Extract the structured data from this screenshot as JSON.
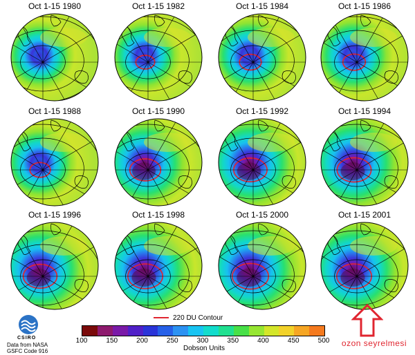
{
  "panels": [
    {
      "title": "Oct 1-15 1980",
      "hole": 0.42,
      "contour": 0.0
    },
    {
      "title": "Oct 1-15 1982",
      "hole": 0.45,
      "contour": 0.22
    },
    {
      "title": "Oct 1-15 1984",
      "hole": 0.5,
      "contour": 0.3
    },
    {
      "title": "Oct 1-15 1986",
      "hole": 0.52,
      "contour": 0.32
    },
    {
      "title": "Oct 1-15 1988",
      "hole": 0.48,
      "contour": 0.26
    },
    {
      "title": "Oct 1-15 1990",
      "hole": 0.66,
      "contour": 0.55
    },
    {
      "title": "Oct 1-15 1992",
      "hole": 0.72,
      "contour": 0.62
    },
    {
      "title": "Oct 1-15 1994",
      "hole": 0.74,
      "contour": 0.64
    },
    {
      "title": "Oct 1-15 1996",
      "hole": 0.72,
      "contour": 0.63
    },
    {
      "title": "Oct 1-15 1998",
      "hole": 0.76,
      "contour": 0.66
    },
    {
      "title": "Oct 1-15 2000",
      "hole": 0.8,
      "contour": 0.7
    },
    {
      "title": "Oct 1-15 2001",
      "hole": 0.76,
      "contour": 0.66
    }
  ],
  "legend": {
    "contour_label": "220 DU Contour",
    "contour_color": "#e0252f",
    "ticks": [
      "100",
      "150",
      "200",
      "250",
      "300",
      "350",
      "400",
      "450",
      "500"
    ],
    "range": [
      100,
      500
    ],
    "units": "Dobson Units",
    "colors": [
      "#7a0a0a",
      "#8e1a6e",
      "#7a1aa8",
      "#5020c8",
      "#2a34d8",
      "#2660e8",
      "#2c92f2",
      "#18c4f2",
      "#12dccc",
      "#20e090",
      "#48e048",
      "#96e632",
      "#d4e62a",
      "#f2d22a",
      "#f6a624",
      "#f57a1e"
    ]
  },
  "credit": {
    "org": "CSIRO",
    "line1": "Data from NASA",
    "line2": "GSFC Code 916"
  },
  "annotation": {
    "label": "ozon seyrelmesi",
    "color": "#e0252f"
  }
}
